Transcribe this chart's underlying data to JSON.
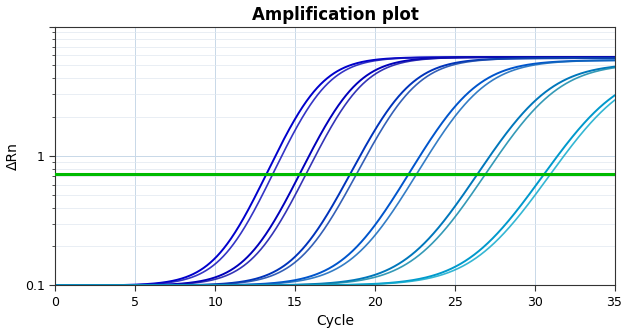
{
  "title": "Amplification plot",
  "xlabel": "Cycle",
  "ylabel": "ΔRn",
  "xmin": 0,
  "xmax": 35,
  "xticks": [
    0,
    5,
    10,
    15,
    20,
    25,
    30,
    35
  ],
  "ymin": 0.1,
  "ymax": 10,
  "threshold": 0.72,
  "threshold_color": "#00bb00",
  "threshold_lw": 2.2,
  "bg_color": "#ffffff",
  "plot_bg_color": "#ffffff",
  "grid_color": "#c8d8e8",
  "grid_minor_color": "#e0e8f0",
  "curves": [
    {
      "midpoint": 16.0,
      "L": 5.8,
      "k": 0.75,
      "color": "#0000cc",
      "lw": 1.4,
      "alpha": 1.0
    },
    {
      "midpoint": 16.4,
      "L": 5.8,
      "k": 0.75,
      "color": "#1111bb",
      "lw": 1.2,
      "alpha": 0.85
    },
    {
      "midpoint": 18.2,
      "L": 5.8,
      "k": 0.72,
      "color": "#0000bb",
      "lw": 1.4,
      "alpha": 1.0
    },
    {
      "midpoint": 18.6,
      "L": 5.8,
      "k": 0.72,
      "color": "#1111aa",
      "lw": 1.2,
      "alpha": 0.85
    },
    {
      "midpoint": 21.5,
      "L": 5.7,
      "k": 0.68,
      "color": "#0033bb",
      "lw": 1.4,
      "alpha": 1.0
    },
    {
      "midpoint": 21.9,
      "L": 5.7,
      "k": 0.68,
      "color": "#1144aa",
      "lw": 1.2,
      "alpha": 0.85
    },
    {
      "midpoint": 25.5,
      "L": 5.5,
      "k": 0.6,
      "color": "#0055cc",
      "lw": 1.4,
      "alpha": 1.0
    },
    {
      "midpoint": 26.0,
      "L": 5.5,
      "k": 0.6,
      "color": "#1166bb",
      "lw": 1.2,
      "alpha": 0.85
    },
    {
      "midpoint": 30.0,
      "L": 5.2,
      "k": 0.55,
      "color": "#0077bb",
      "lw": 1.4,
      "alpha": 1.0
    },
    {
      "midpoint": 30.5,
      "L": 5.2,
      "k": 0.55,
      "color": "#1188aa",
      "lw": 1.2,
      "alpha": 0.85
    },
    {
      "midpoint": 34.2,
      "L": 4.8,
      "k": 0.52,
      "color": "#0099cc",
      "lw": 1.4,
      "alpha": 1.0
    },
    {
      "midpoint": 34.6,
      "L": 4.8,
      "k": 0.52,
      "color": "#11aacc",
      "lw": 1.2,
      "alpha": 0.85
    }
  ],
  "baseline": 0.1,
  "title_fontsize": 12,
  "label_fontsize": 10,
  "tick_fontsize": 9,
  "figsize": [
    6.28,
    3.34
  ],
  "dpi": 100
}
